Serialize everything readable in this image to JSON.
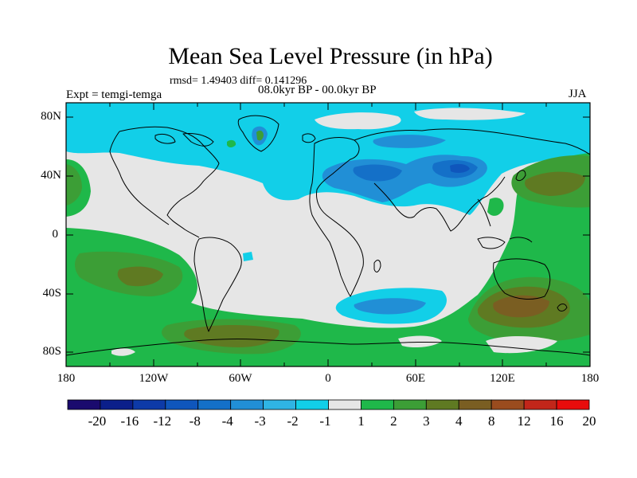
{
  "plot": {
    "title": "Mean Sea Level Pressure (in hPa)",
    "stats": "rmsd= 1.49403 diff= 0.141296",
    "period": "08.0kyr BP - 00.0kyr BP",
    "experiment": "Expt = temgi-temga",
    "season": "JJA"
  },
  "axes": {
    "y_ticks": [
      "80N",
      "40N",
      "0",
      "40S",
      "80S"
    ],
    "x_ticks": [
      "180",
      "120W",
      "60W",
      "0",
      "60E",
      "120E",
      "180"
    ]
  },
  "colorbar": {
    "labels": [
      "-20",
      "-16",
      "-12",
      "-8",
      "-4",
      "-3",
      "-2",
      "-1",
      "1",
      "2",
      "3",
      "4",
      "8",
      "12",
      "16",
      "20"
    ],
    "colors": [
      "#1a0a6e",
      "#0b1f8a",
      "#0d3aa8",
      "#0f56bc",
      "#1470c8",
      "#218fd6",
      "#2fb4e4",
      "#12cfe8",
      "#e6e6e6",
      "#1fb84a",
      "#3c9e36",
      "#5f7a22",
      "#7a5e22",
      "#9a4c1e",
      "#c2261a",
      "#e80c0c"
    ]
  }
}
